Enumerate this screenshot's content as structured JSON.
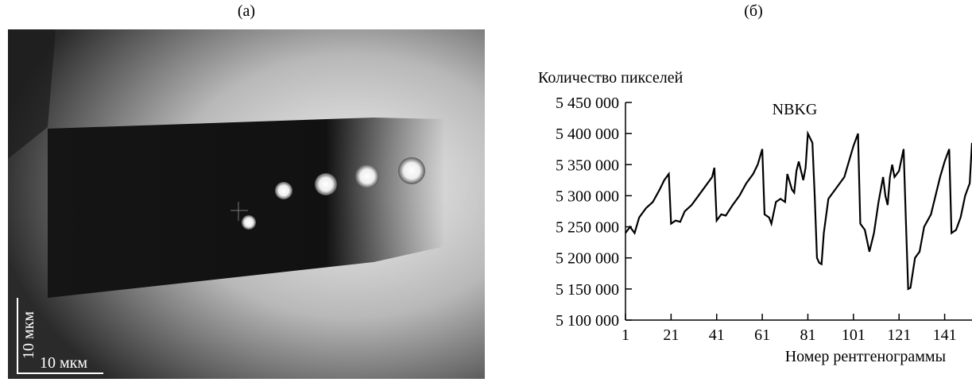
{
  "panel_a": {
    "label": "(а)",
    "scale_x": "10 мкм",
    "scale_y": "10 мкм"
  },
  "chart_data": {
    "type": "line",
    "panel_label": "(б)",
    "title": "NBKG",
    "y_label": "Количество пикселей",
    "x_label": "Номер рентгенограммы",
    "xlim": [
      1,
      153
    ],
    "xticks": [
      1,
      21,
      41,
      61,
      81,
      101,
      121,
      141
    ],
    "ylim": [
      5100000,
      5450000
    ],
    "yticks": [
      {
        "value": 5100000,
        "label": "5 100 000"
      },
      {
        "value": 5150000,
        "label": "5 150 000"
      },
      {
        "value": 5200000,
        "label": "5 200 000"
      },
      {
        "value": 5250000,
        "label": "5 250 000"
      },
      {
        "value": 5300000,
        "label": "5 300 000"
      },
      {
        "value": 5350000,
        "label": "5 350 000"
      },
      {
        "value": 5400000,
        "label": "5 400 000"
      },
      {
        "value": 5450000,
        "label": "5 450 000"
      }
    ],
    "series": [
      {
        "color": "#000000",
        "x": [
          1,
          3,
          5,
          7,
          10,
          13,
          16,
          18,
          20,
          21,
          23,
          25,
          27,
          30,
          33,
          36,
          39,
          40,
          41,
          43,
          45,
          48,
          51,
          54,
          57,
          59,
          61,
          62,
          64,
          65,
          67,
          69,
          71,
          72,
          74,
          75,
          76,
          77,
          78,
          79,
          80,
          81,
          83,
          84,
          85,
          86,
          87,
          88,
          90,
          93,
          95,
          97,
          99,
          101,
          103,
          104,
          106,
          108,
          110,
          112,
          114,
          115,
          116,
          117,
          118,
          119,
          121,
          123,
          124,
          125,
          126,
          128,
          130,
          132,
          135,
          137,
          139,
          141,
          143,
          144,
          146,
          148,
          150,
          152,
          153
        ],
        "values": [
          5240000,
          5250000,
          5240000,
          5265000,
          5280000,
          5290000,
          5310000,
          5325000,
          5335000,
          5255000,
          5260000,
          5258000,
          5275000,
          5285000,
          5300000,
          5315000,
          5330000,
          5345000,
          5260000,
          5270000,
          5268000,
          5285000,
          5300000,
          5320000,
          5335000,
          5350000,
          5375000,
          5270000,
          5265000,
          5255000,
          5290000,
          5295000,
          5290000,
          5335000,
          5310000,
          5305000,
          5340000,
          5355000,
          5340000,
          5325000,
          5345000,
          5400000,
          5385000,
          5300000,
          5200000,
          5192000,
          5190000,
          5240000,
          5295000,
          5310000,
          5320000,
          5330000,
          5355000,
          5380000,
          5400000,
          5255000,
          5245000,
          5210000,
          5240000,
          5290000,
          5330000,
          5300000,
          5285000,
          5330000,
          5350000,
          5330000,
          5340000,
          5375000,
          5260000,
          5150000,
          5152000,
          5200000,
          5210000,
          5250000,
          5270000,
          5300000,
          5330000,
          5355000,
          5375000,
          5240000,
          5245000,
          5265000,
          5300000,
          5320000,
          5385000
        ]
      }
    ]
  }
}
